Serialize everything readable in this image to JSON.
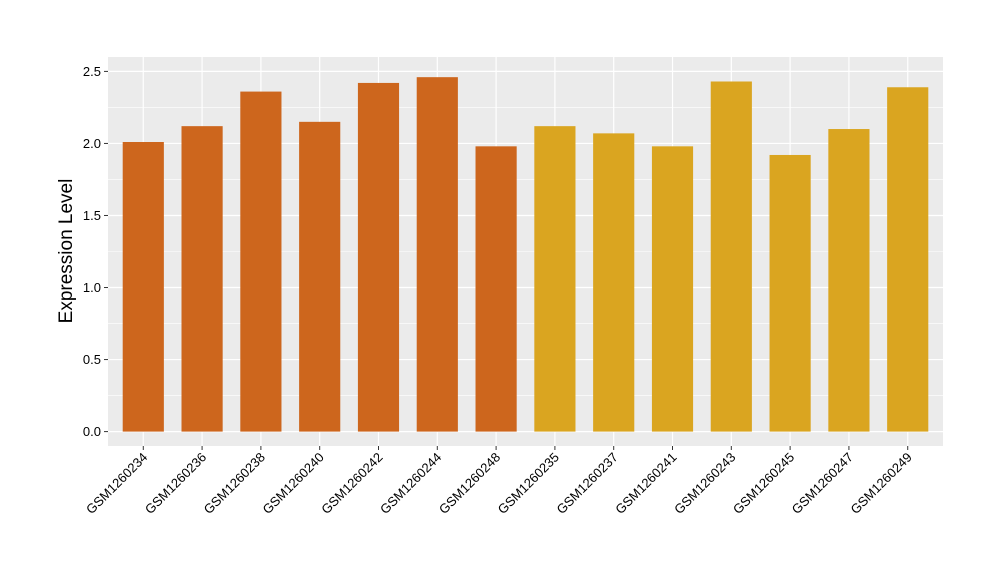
{
  "chart_data": {
    "type": "bar",
    "ylabel": "Expression Level",
    "xlabel": "",
    "ylim": [
      -0.1,
      2.6
    ],
    "yticks": [
      0.0,
      0.5,
      1.0,
      1.5,
      2.0,
      2.5
    ],
    "ytick_labels": [
      "0.0",
      "0.5",
      "1.0",
      "1.5",
      "2.0",
      "2.5"
    ],
    "grid": true,
    "legend": "none",
    "categories": [
      "GSM1260234",
      "GSM1260236",
      "GSM1260238",
      "GSM1260240",
      "GSM1260242",
      "GSM1260244",
      "GSM1260248",
      "GSM1260235",
      "GSM1260237",
      "GSM1260241",
      "GSM1260243",
      "GSM1260245",
      "GSM1260247",
      "GSM1260249"
    ],
    "values": [
      2.01,
      2.12,
      2.36,
      2.15,
      2.42,
      2.46,
      1.98,
      2.12,
      2.07,
      1.98,
      2.43,
      1.92,
      2.1,
      2.39
    ],
    "groups": [
      0,
      0,
      0,
      0,
      0,
      0,
      0,
      1,
      1,
      1,
      1,
      1,
      1,
      1
    ],
    "colors": [
      "#cd661d",
      "#daa520"
    ],
    "panel_color": "#ebebeb",
    "grid_color": "#ffffff"
  }
}
